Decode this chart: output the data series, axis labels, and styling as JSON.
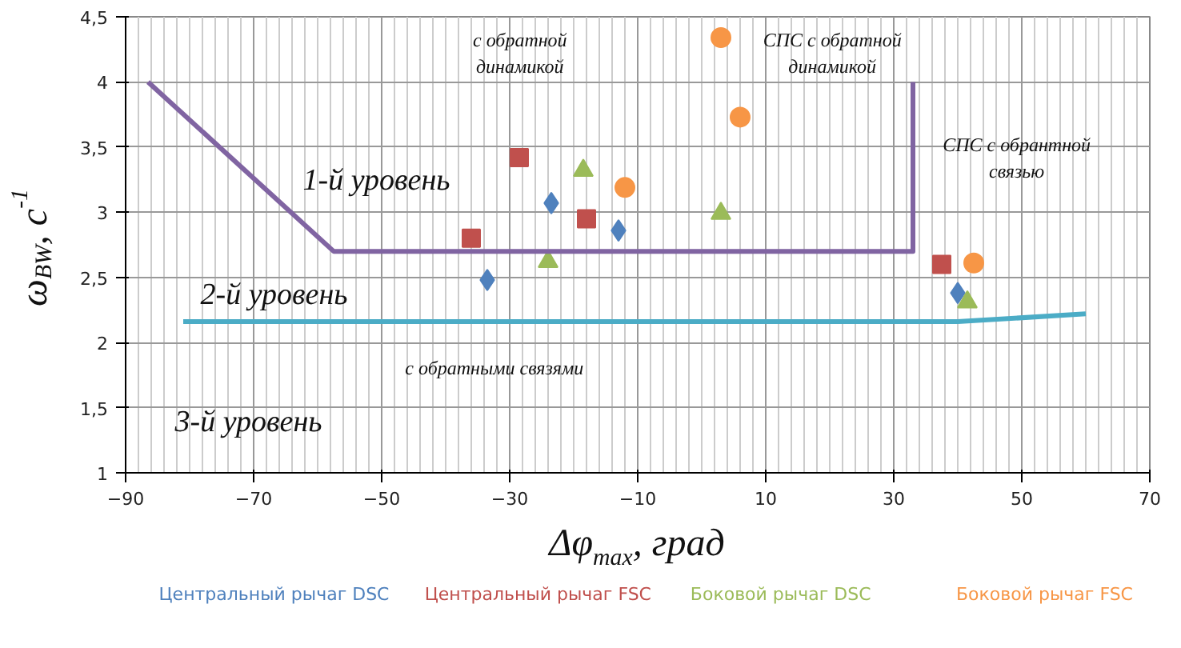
{
  "chart_data": {
    "type": "scatter",
    "xlabel": "Δφ$_{max}$, град",
    "ylabel": "ω$_{BW}$, c$^{-1}$",
    "xlim": [
      -90,
      70
    ],
    "xticks": [
      -90,
      -70,
      -50,
      -30,
      -10,
      10,
      30,
      50,
      70
    ],
    "ylim": [
      1,
      4.5
    ],
    "yticks": [
      1,
      {
        "value": 1.5,
        "label": "1,5"
      },
      2,
      {
        "value": 2.5,
        "label": "2,5"
      },
      3,
      {
        "value": 3.5,
        "label": "3,5"
      },
      4,
      {
        "value": 4.5,
        "label": "4,5"
      }
    ],
    "grid": true,
    "legend": "bottom",
    "series": [
      {
        "name": "Центральный рычаг DSC",
        "color": "#4f81bd",
        "marker": "diamond",
        "x": [
          -33.5,
          -23.5,
          -13,
          40
        ],
        "values": [
          2.48,
          3.07,
          2.86,
          2.38
        ]
      },
      {
        "name": "Центральный рычаг FSC",
        "color": "#c0504d",
        "marker": "square",
        "x": [
          -36,
          -28.5,
          -18,
          37.5
        ],
        "values": [
          2.8,
          3.42,
          2.95,
          2.6
        ]
      },
      {
        "name": "Боковой рычаг DSC",
        "color": "#9bbb59",
        "marker": "triangle",
        "x": [
          -24,
          -18.5,
          3,
          41.5
        ],
        "values": [
          2.62,
          3.32,
          2.99,
          2.31
        ]
      },
      {
        "name": "Боковой рычаг FSC",
        "color": "#f79646",
        "marker": "circle",
        "x": [
          -12,
          3,
          6,
          42.5
        ],
        "values": [
          3.19,
          4.34,
          3.73,
          2.61
        ]
      },
      {
        "type": "line",
        "color": "#8064a2",
        "x": [
          -86.5,
          -57.5,
          33,
          33
        ],
        "values": [
          4.0,
          2.7,
          2.7,
          4.0
        ]
      },
      {
        "type": "line",
        "color": "#4bacc6",
        "x": [
          -81,
          40,
          60
        ],
        "values": [
          2.16,
          2.16,
          2.22
        ]
      }
    ],
    "annotations": [
      "1-й уровень",
      "2-й уровень",
      "3-й уровень",
      "с обратной\nдинамикой",
      "СПС с обратной\nдинамикой",
      "СПС с обрантной\nсвязью",
      "с обратными связями"
    ]
  }
}
